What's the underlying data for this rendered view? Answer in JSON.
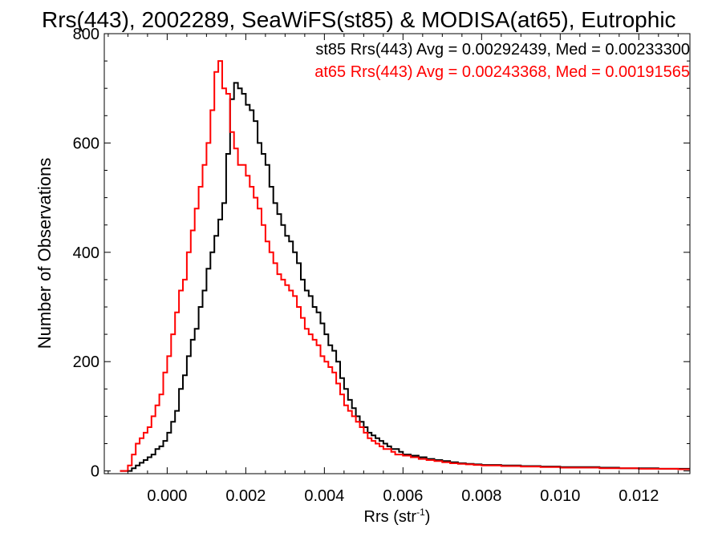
{
  "chart_data": {
    "type": "line",
    "title": "Rrs(443), 2002289, SeaWiFS(st85) & MODISA(at65), Eutrophic",
    "xlabel": "Rrs (str",
    "xlabel_sup": "-1",
    "xlabel_close": ")",
    "ylabel": "Number of Observations",
    "xlim": [
      -0.0016,
      0.0133
    ],
    "ylim": [
      -5,
      800
    ],
    "xticks": [
      0.0,
      0.002,
      0.004,
      0.006,
      0.008,
      0.01,
      0.012
    ],
    "xtick_labels": [
      "0.000",
      "0.002",
      "0.004",
      "0.006",
      "0.008",
      "0.010",
      "0.012"
    ],
    "yticks": [
      0,
      200,
      400,
      600,
      800
    ],
    "ytick_labels": [
      "0",
      "200",
      "400",
      "600",
      "800"
    ],
    "grid": false,
    "step": "histogram",
    "annotations": [
      {
        "text": "st85 Rrs(443) Avg = 0.00292439, Med = 0.00233300",
        "color": "#000000"
      },
      {
        "text": "at65 Rrs(443) Avg = 0.00243368, Med = 0.00191565",
        "color": "#ff0000"
      }
    ],
    "series": [
      {
        "color": "#000000",
        "x": [
          -0.0012,
          -0.001,
          -0.0009,
          -0.0008,
          -0.0007,
          -0.0006,
          -0.0005,
          -0.0004,
          -0.0003,
          -0.0002,
          -0.0001,
          0.0,
          0.0001,
          0.0002,
          0.0003,
          0.0004,
          0.0005,
          0.0006,
          0.0007,
          0.0008,
          0.0009,
          0.001,
          0.0011,
          0.0012,
          0.0013,
          0.0014,
          0.0015,
          0.0016,
          0.0017,
          0.0018,
          0.0019,
          0.002,
          0.0021,
          0.0022,
          0.0023,
          0.0024,
          0.0025,
          0.0026,
          0.0027,
          0.0028,
          0.0029,
          0.003,
          0.0031,
          0.0032,
          0.0033,
          0.0034,
          0.0035,
          0.0036,
          0.0037,
          0.0038,
          0.0039,
          0.004,
          0.0041,
          0.0042,
          0.0043,
          0.0044,
          0.0045,
          0.0046,
          0.0047,
          0.0048,
          0.0049,
          0.005,
          0.0051,
          0.0052,
          0.0053,
          0.0054,
          0.0055,
          0.0056,
          0.0057,
          0.0058,
          0.0059,
          0.006,
          0.0062,
          0.0064,
          0.0066,
          0.0068,
          0.007,
          0.0072,
          0.0074,
          0.0076,
          0.0078,
          0.008,
          0.0085,
          0.009,
          0.0095,
          0.01,
          0.0105,
          0.011,
          0.0115,
          0.012,
          0.0125,
          0.013
        ],
        "values": [
          0,
          0,
          5,
          10,
          15,
          20,
          25,
          30,
          40,
          45,
          55,
          70,
          90,
          110,
          150,
          175,
          210,
          240,
          260,
          300,
          330,
          370,
          400,
          430,
          460,
          490,
          580,
          680,
          710,
          700,
          690,
          670,
          660,
          640,
          600,
          580,
          560,
          520,
          490,
          470,
          450,
          430,
          420,
          400,
          380,
          350,
          330,
          320,
          300,
          290,
          270,
          250,
          230,
          220,
          200,
          170,
          150,
          130,
          115,
          100,
          90,
          80,
          70,
          65,
          60,
          55,
          50,
          45,
          40,
          40,
          35,
          30,
          28,
          25,
          22,
          20,
          18,
          16,
          14,
          13,
          12,
          11,
          10,
          9,
          8,
          7,
          7,
          6,
          5,
          5,
          4,
          4
        ]
      },
      {
        "color": "#ff0000",
        "x": [
          -0.0012,
          -0.001,
          -0.0009,
          -0.0008,
          -0.0007,
          -0.0006,
          -0.0005,
          -0.0004,
          -0.0003,
          -0.0002,
          -0.0001,
          0.0,
          0.0001,
          0.0002,
          0.0003,
          0.0004,
          0.0005,
          0.0006,
          0.0007,
          0.0008,
          0.0009,
          0.001,
          0.0011,
          0.0012,
          0.0013,
          0.0014,
          0.0015,
          0.0016,
          0.0017,
          0.0018,
          0.0019,
          0.002,
          0.0021,
          0.0022,
          0.0023,
          0.0024,
          0.0025,
          0.0026,
          0.0027,
          0.0028,
          0.0029,
          0.003,
          0.0031,
          0.0032,
          0.0033,
          0.0034,
          0.0035,
          0.0036,
          0.0037,
          0.0038,
          0.0039,
          0.004,
          0.0041,
          0.0042,
          0.0043,
          0.0044,
          0.0045,
          0.0046,
          0.0047,
          0.0048,
          0.0049,
          0.005,
          0.0051,
          0.0052,
          0.0053,
          0.0054,
          0.0055,
          0.0056,
          0.0057,
          0.0058,
          0.0059,
          0.006,
          0.0062,
          0.0064,
          0.0066,
          0.0068,
          0.007,
          0.0072,
          0.0074,
          0.0076,
          0.0078,
          0.008,
          0.0085,
          0.009,
          0.0095,
          0.01,
          0.0105,
          0.011,
          0.0115,
          0.012,
          0.0125,
          0.013
        ],
        "values": [
          0,
          10,
          30,
          50,
          60,
          70,
          80,
          100,
          120,
          140,
          180,
          210,
          250,
          290,
          330,
          350,
          400,
          440,
          480,
          520,
          560,
          600,
          660,
          730,
          750,
          700,
          690,
          620,
          590,
          560,
          560,
          540,
          520,
          500,
          480,
          450,
          420,
          400,
          380,
          360,
          350,
          340,
          330,
          320,
          300,
          280,
          260,
          250,
          240,
          230,
          210,
          200,
          190,
          180,
          160,
          140,
          120,
          110,
          100,
          90,
          80,
          70,
          60,
          55,
          50,
          45,
          40,
          40,
          35,
          30,
          30,
          28,
          25,
          22,
          20,
          18,
          16,
          14,
          13,
          12,
          11,
          10,
          9,
          8,
          7,
          6,
          6,
          5,
          5,
          4,
          4,
          3
        ]
      }
    ]
  }
}
